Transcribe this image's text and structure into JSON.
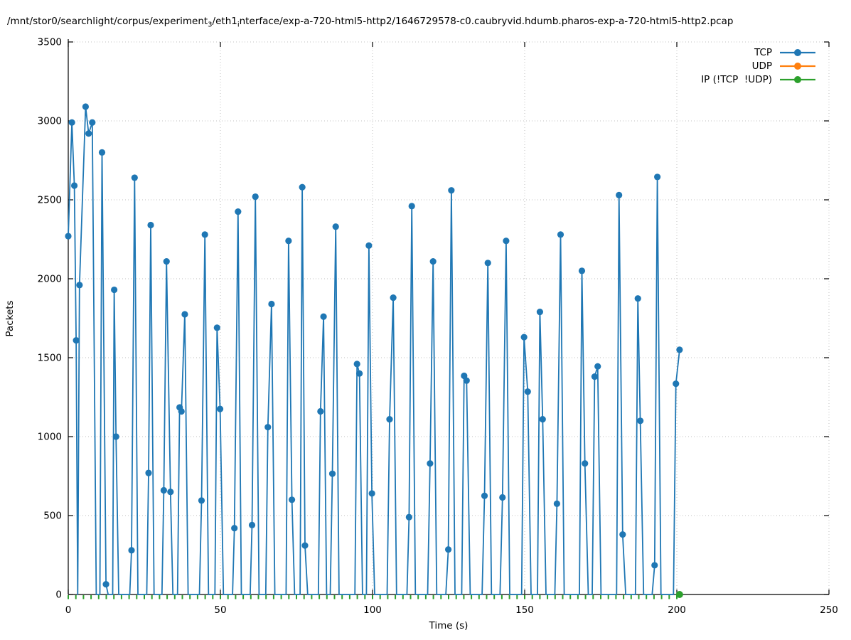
{
  "title": {
    "parts": [
      "/mnt/stor0/searchlight/corpus/experiment",
      "3",
      "/eth1",
      "i",
      "nterface/exp-a-720-html5-http2/1646729578-c0.caubryvid.hdumb.pharos-exp-a-720-html5-http2.pcap"
    ]
  },
  "chart_data": {
    "type": "line",
    "title_plain": "/mnt/stor0/searchlight/corpus/experiment_3/eth1_interface/exp-a-720-html5-http2/1646729578-c0.caubryvid.hdumb.pharos-exp-a-720-html5-http2.pcap",
    "xlabel": "Time (s)",
    "ylabel": "Packets",
    "xlim": [
      0,
      250
    ],
    "ylim": [
      0,
      3500
    ],
    "xticks": [
      0,
      50,
      100,
      150,
      200,
      250
    ],
    "yticks": [
      0,
      500,
      1000,
      1500,
      2000,
      2500,
      3000,
      3500
    ],
    "grid": "dotted at major ticks, both axes; top and right borders dotted",
    "legend": {
      "position": "top-right",
      "items": [
        {
          "label": "TCP",
          "color": "#1f77b4"
        },
        {
          "label": "UDP",
          "color": "#ff7f0e"
        },
        {
          "label": "IP (!TCP  !UDP)",
          "color": "#2ca02c"
        }
      ]
    },
    "series": [
      {
        "name": "TCP",
        "color": "#1f77b4",
        "style": "line with circle markers",
        "points_tvm": [
          [
            0,
            2270,
            1
          ],
          [
            1.2,
            2990,
            1
          ],
          [
            2.0,
            2590,
            1
          ],
          [
            2.6,
            1610,
            1
          ],
          [
            3.1,
            0,
            0
          ],
          [
            3.7,
            1960,
            1
          ],
          [
            5.7,
            3090,
            1
          ],
          [
            6.7,
            2920,
            1
          ],
          [
            7.9,
            2990,
            1
          ],
          [
            9.2,
            0,
            0
          ],
          [
            10.4,
            0,
            0
          ],
          [
            11.1,
            2800,
            1
          ],
          [
            12.4,
            65,
            1
          ],
          [
            13.1,
            0,
            0
          ],
          [
            14.6,
            0,
            0
          ],
          [
            15.1,
            1930,
            1
          ],
          [
            15.7,
            1000,
            1
          ],
          [
            16.6,
            0,
            0
          ],
          [
            20.2,
            0,
            0
          ],
          [
            20.8,
            280,
            1
          ],
          [
            21.8,
            2640,
            1
          ],
          [
            22.9,
            0,
            0
          ],
          [
            25.8,
            0,
            0
          ],
          [
            26.4,
            770,
            1
          ],
          [
            27.1,
            2340,
            1
          ],
          [
            28.2,
            0,
            0
          ],
          [
            30.8,
            0,
            0
          ],
          [
            31.4,
            660,
            1
          ],
          [
            32.3,
            2110,
            1
          ],
          [
            33.6,
            650,
            1
          ],
          [
            34.4,
            0,
            0
          ],
          [
            35.9,
            0,
            0
          ],
          [
            36.6,
            1185,
            1
          ],
          [
            37.2,
            1160,
            1
          ],
          [
            38.3,
            1775,
            1
          ],
          [
            39.4,
            0,
            0
          ],
          [
            43.1,
            0,
            0
          ],
          [
            43.8,
            595,
            1
          ],
          [
            44.9,
            2280,
            1
          ],
          [
            46.1,
            0,
            0
          ],
          [
            48.2,
            0,
            0
          ],
          [
            48.9,
            1690,
            1
          ],
          [
            49.9,
            1175,
            1
          ],
          [
            51.0,
            0,
            0
          ],
          [
            54.0,
            0,
            0
          ],
          [
            54.6,
            420,
            1
          ],
          [
            55.8,
            2425,
            1
          ],
          [
            56.9,
            0,
            0
          ],
          [
            59.8,
            0,
            0
          ],
          [
            60.4,
            440,
            1
          ],
          [
            61.5,
            2520,
            1
          ],
          [
            62.7,
            0,
            0
          ],
          [
            64.9,
            0,
            0
          ],
          [
            65.6,
            1060,
            1
          ],
          [
            66.8,
            1840,
            1
          ],
          [
            67.9,
            0,
            0
          ],
          [
            71.6,
            0,
            0
          ],
          [
            72.4,
            2240,
            1
          ],
          [
            73.5,
            600,
            1
          ],
          [
            74.4,
            0,
            0
          ],
          [
            76.2,
            0,
            0
          ],
          [
            76.9,
            2580,
            1
          ],
          [
            77.8,
            310,
            1
          ],
          [
            78.7,
            0,
            0
          ],
          [
            82.2,
            0,
            0
          ],
          [
            82.9,
            1160,
            1
          ],
          [
            83.9,
            1760,
            1
          ],
          [
            84.9,
            0,
            0
          ],
          [
            86.1,
            0,
            0
          ],
          [
            86.8,
            765,
            1
          ],
          [
            87.9,
            2330,
            1
          ],
          [
            89.0,
            0,
            0
          ],
          [
            94.2,
            0,
            0
          ],
          [
            94.9,
            1460,
            1
          ],
          [
            95.7,
            1400,
            1
          ],
          [
            96.7,
            0,
            0
          ],
          [
            98.0,
            0,
            0
          ],
          [
            98.8,
            2210,
            1
          ],
          [
            99.8,
            640,
            1
          ],
          [
            100.7,
            0,
            0
          ],
          [
            104.8,
            0,
            0
          ],
          [
            105.6,
            1110,
            1
          ],
          [
            106.8,
            1880,
            1
          ],
          [
            107.9,
            0,
            0
          ],
          [
            111.3,
            0,
            0
          ],
          [
            112.0,
            490,
            1
          ],
          [
            112.9,
            2460,
            1
          ],
          [
            114.1,
            0,
            0
          ],
          [
            118.1,
            0,
            0
          ],
          [
            118.9,
            830,
            1
          ],
          [
            119.9,
            2110,
            1
          ],
          [
            121.1,
            0,
            0
          ],
          [
            124.1,
            0,
            0
          ],
          [
            124.9,
            285,
            1
          ],
          [
            125.9,
            2560,
            1
          ],
          [
            127.1,
            0,
            0
          ],
          [
            129.3,
            0,
            0
          ],
          [
            130.1,
            1385,
            1
          ],
          [
            130.9,
            1355,
            1
          ],
          [
            132.1,
            0,
            0
          ],
          [
            136.0,
            0,
            0
          ],
          [
            136.8,
            625,
            1
          ],
          [
            137.9,
            2100,
            1
          ],
          [
            139.1,
            0,
            0
          ],
          [
            141.9,
            0,
            0
          ],
          [
            142.7,
            615,
            1
          ],
          [
            143.9,
            2240,
            1
          ],
          [
            145.1,
            0,
            0
          ],
          [
            149.0,
            0,
            0
          ],
          [
            149.8,
            1630,
            1
          ],
          [
            151.0,
            1285,
            1
          ],
          [
            152.1,
            0,
            0
          ],
          [
            154.2,
            0,
            0
          ],
          [
            155.0,
            1790,
            1
          ],
          [
            155.9,
            1110,
            1
          ],
          [
            157.0,
            0,
            0
          ],
          [
            159.9,
            0,
            0
          ],
          [
            160.6,
            575,
            1
          ],
          [
            161.8,
            2280,
            1
          ],
          [
            163.0,
            0,
            0
          ],
          [
            168.0,
            0,
            0
          ],
          [
            168.8,
            2050,
            1
          ],
          [
            169.8,
            830,
            1
          ],
          [
            170.9,
            0,
            0
          ],
          [
            172.2,
            0,
            0
          ],
          [
            173.0,
            1380,
            1
          ],
          [
            174.0,
            1445,
            1
          ],
          [
            175.1,
            0,
            0
          ],
          [
            180.2,
            0,
            0
          ],
          [
            181.0,
            2530,
            1
          ],
          [
            182.2,
            380,
            1
          ],
          [
            183.2,
            0,
            0
          ],
          [
            186.4,
            0,
            0
          ],
          [
            187.2,
            1875,
            1
          ],
          [
            188.0,
            1100,
            1
          ],
          [
            189.1,
            0,
            0
          ],
          [
            191.9,
            0,
            0
          ],
          [
            192.7,
            185,
            1
          ],
          [
            193.6,
            2645,
            1
          ],
          [
            194.8,
            0,
            0
          ],
          [
            198.9,
            0,
            0
          ],
          [
            199.7,
            1335,
            1
          ],
          [
            200.9,
            1550,
            1
          ]
        ]
      },
      {
        "name": "UDP",
        "color": "#ff7f0e",
        "style": "no visible points (constant 0, hidden beneath IP markers)",
        "points_tvm": []
      },
      {
        "name": "IP (!TCP  !UDP)",
        "color": "#2ca02c",
        "style": "constant 0 along x-axis; small tick markers every 2.5 s, final circle marker",
        "value": 0,
        "sample_interval_s": 2.5,
        "t_start": 0,
        "t_end": 200,
        "last_point": [
          200.9,
          0
        ]
      }
    ]
  }
}
